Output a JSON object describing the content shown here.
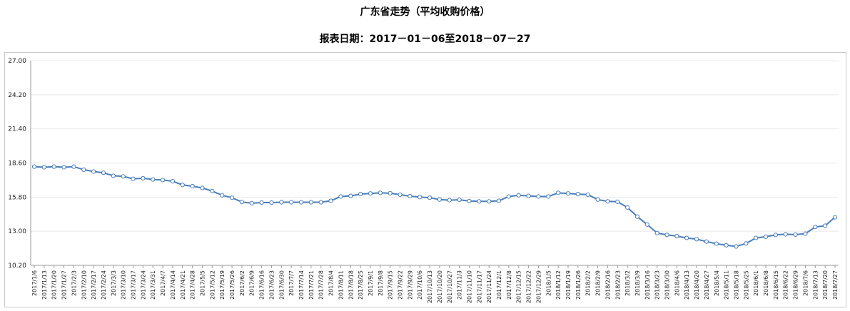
{
  "title": "广东省走势（平均收购价格）",
  "subtitle": "报表日期：2017－01－06至2018－07－27",
  "chart_data": {
    "type": "line",
    "title": "广东省走势（平均收购价格）",
    "subtitle": "报表日期：2017－01－06至2018－07－27",
    "xlabel": "",
    "ylabel": "",
    "ylim": [
      10.2,
      27.0
    ],
    "yticks": [
      "10.20",
      "13.00",
      "15.80",
      "18.60",
      "21.40",
      "24.20",
      "27.00"
    ],
    "grid": true,
    "legend": "none",
    "line_color": "#4a7ebb",
    "x": [
      "2017/1/6",
      "2017/1/13",
      "2017/1/20",
      "2017/1/27",
      "2017/2/3",
      "2017/2/10",
      "2017/2/17",
      "2017/2/24",
      "2017/3/3",
      "2017/3/10",
      "2017/3/17",
      "2017/3/24",
      "2017/3/31",
      "2017/4/7",
      "2017/4/14",
      "2017/4/21",
      "2017/4/28",
      "2017/5/5",
      "2017/5/12",
      "2017/5/19",
      "2017/5/26",
      "2017/6/2",
      "2017/6/9",
      "2017/6/16",
      "2017/6/23",
      "2017/6/30",
      "2017/7/7",
      "2017/7/14",
      "2017/7/21",
      "2017/7/28",
      "2017/8/4",
      "2017/8/11",
      "2017/8/18",
      "2017/8/25",
      "2017/9/1",
      "2017/9/8",
      "2017/9/15",
      "2017/9/22",
      "2017/9/29",
      "2017/10/6",
      "2017/10/13",
      "2017/10/20",
      "2017/10/27",
      "2017/11/3",
      "2017/11/10",
      "2017/11/17",
      "2017/11/24",
      "2017/12/1",
      "2017/12/8",
      "2017/12/15",
      "2017/12/22",
      "2017/12/29",
      "2018/1/5",
      "2018/1/12",
      "2018/1/19",
      "2018/1/26",
      "2018/2/2",
      "2018/2/9",
      "2018/2/16",
      "2018/2/23",
      "2018/3/2",
      "2018/3/9",
      "2018/3/16",
      "2018/3/23",
      "2018/3/30",
      "2018/4/6",
      "2018/4/13",
      "2018/4/20",
      "2018/4/27",
      "2018/5/4",
      "2018/5/11",
      "2018/5/18",
      "2018/5/25",
      "2018/6/1",
      "2018/6/8",
      "2018/6/15",
      "2018/6/22",
      "2018/6/29",
      "2018/7/6",
      "2018/7/13",
      "2018/7/20",
      "2018/7/27"
    ],
    "series": [
      {
        "values": [
          18.3,
          18.25,
          18.3,
          18.25,
          18.3,
          18.05,
          17.9,
          17.8,
          17.55,
          17.5,
          17.3,
          17.35,
          17.25,
          17.2,
          17.1,
          16.8,
          16.7,
          16.55,
          16.3,
          15.95,
          15.75,
          15.4,
          15.3,
          15.35,
          15.35,
          15.38,
          15.38,
          15.38,
          15.38,
          15.38,
          15.5,
          15.85,
          15.9,
          16.05,
          16.1,
          16.15,
          16.12,
          16.0,
          15.88,
          15.8,
          15.75,
          15.6,
          15.55,
          15.58,
          15.48,
          15.45,
          15.45,
          15.5,
          15.85,
          15.95,
          15.9,
          15.85,
          15.85,
          16.15,
          16.1,
          16.05,
          16.0,
          15.6,
          15.45,
          15.42,
          14.95,
          14.2,
          13.55,
          12.85,
          12.7,
          12.6,
          12.45,
          12.35,
          12.15,
          11.98,
          11.85,
          11.75,
          12.0,
          12.45,
          12.55,
          12.7,
          12.75,
          12.72,
          12.8,
          13.35,
          13.45,
          14.15
        ]
      }
    ]
  }
}
